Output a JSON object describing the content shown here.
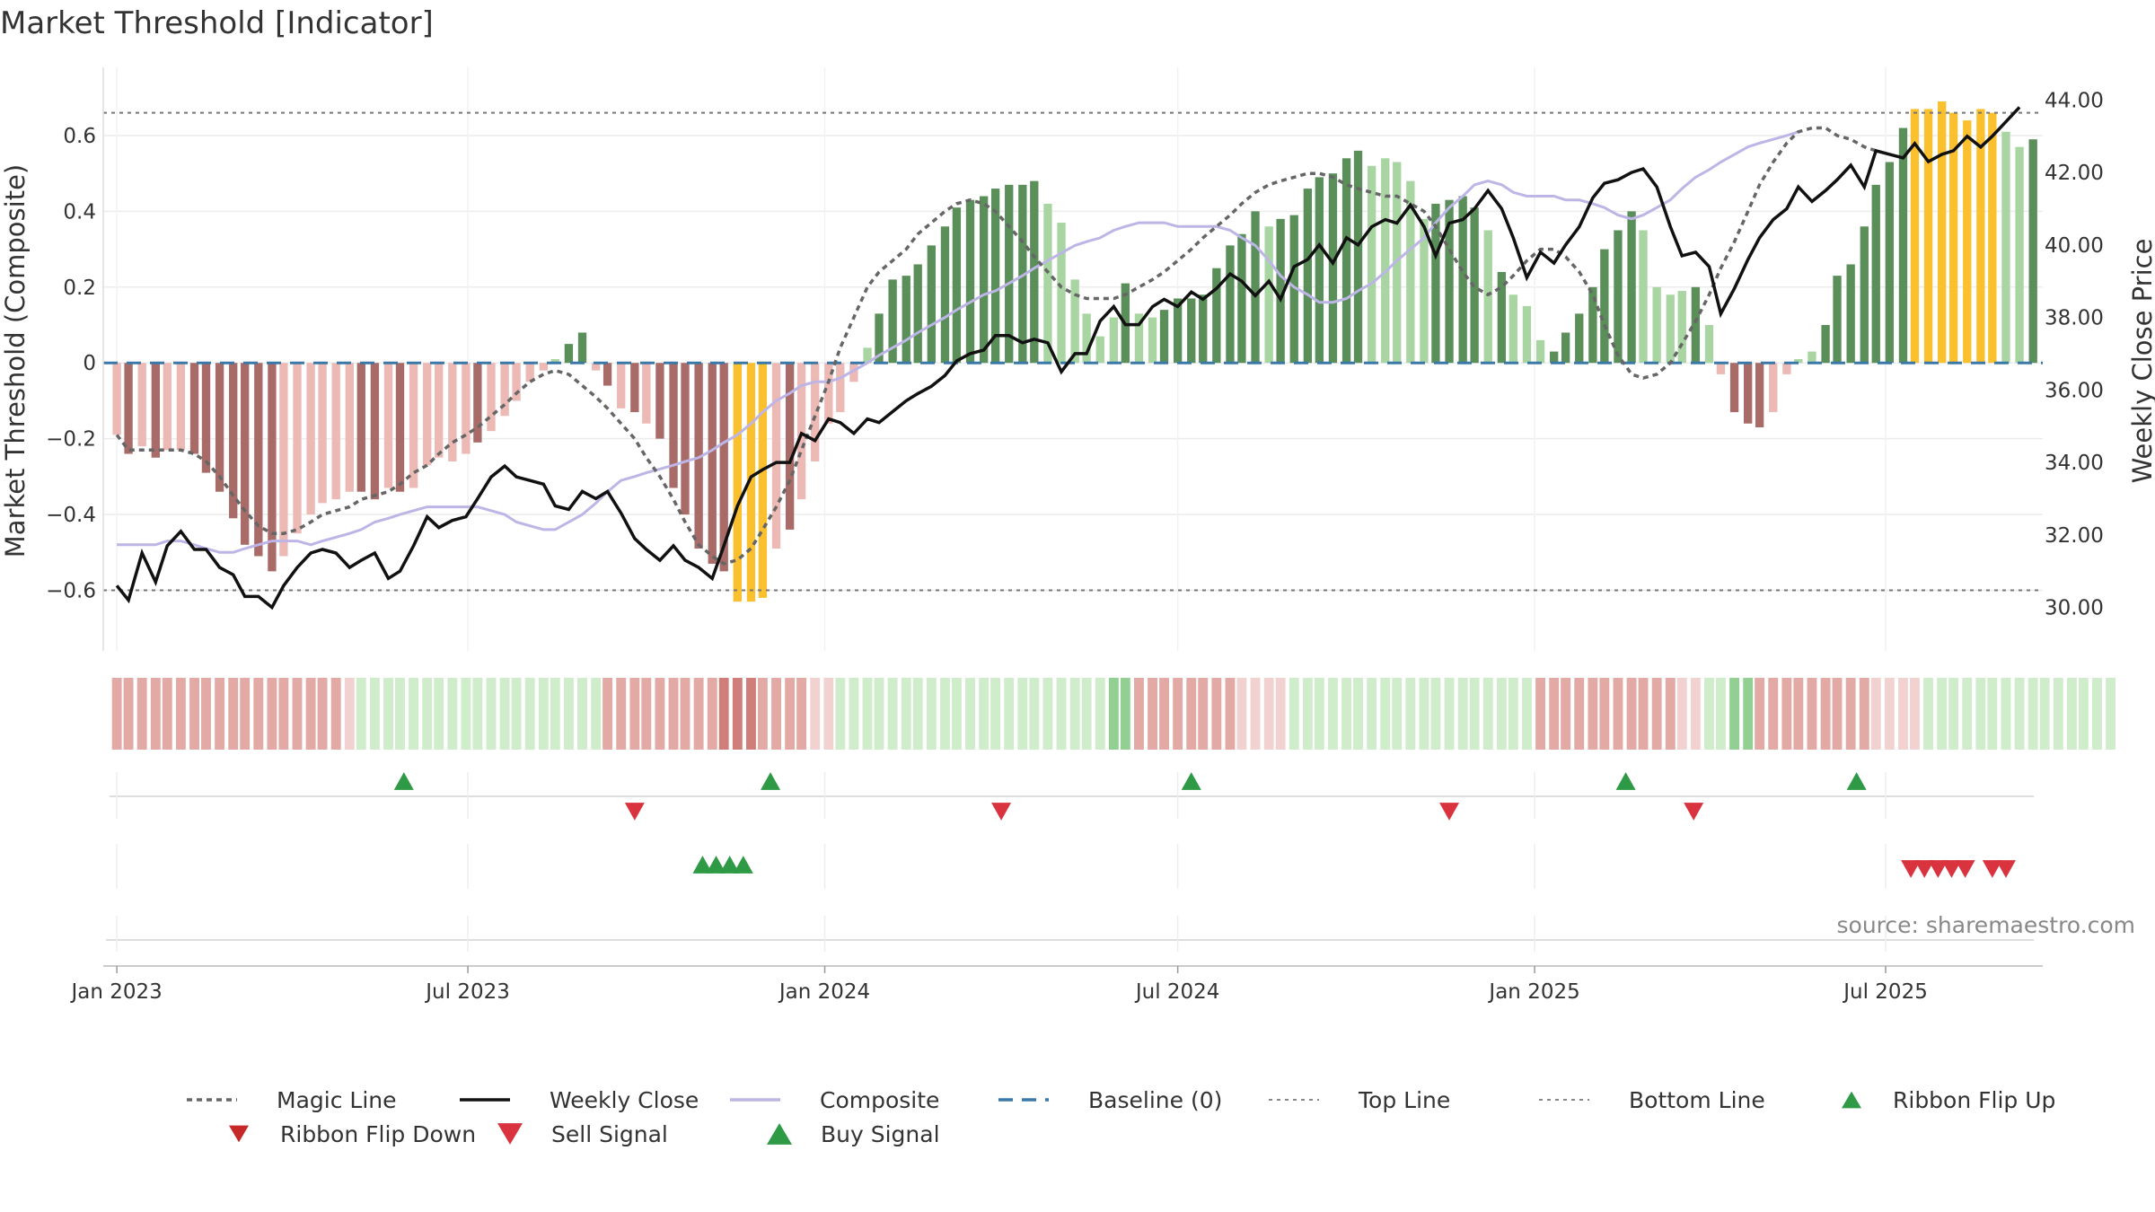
{
  "title": "Market Threshold [Indicator]",
  "source": "source: sharemaestro.com",
  "colors": {
    "dark_green": "#5a8f5a",
    "light_green": "#a8d5a2",
    "dark_red": "#a86b68",
    "light_red": "#ecb9b5",
    "gold": "#fbc02d",
    "magic": "#666666",
    "close": "#111111",
    "composite": "#bcb5e6",
    "baseline": "#3a78a8",
    "buy": "#2e9a45",
    "sell": "#d9333f"
  },
  "chart_data": {
    "type": "bar",
    "title": "Market Threshold [Indicator]",
    "ylabel": "Market Threshold (Composite)",
    "y2label": "Weekly Close Price",
    "x_start": "2023-01-01",
    "x_end": "2025-09-15",
    "ylim": [
      -0.76,
      0.78
    ],
    "y2lim": [
      28.8,
      44.9
    ],
    "yticks": [
      0.6,
      0.4,
      0.2,
      0,
      -0.2,
      -0.4,
      -0.6
    ],
    "ytick_labels": [
      "0.6",
      "0.4",
      "0.2",
      "0",
      "−0.2",
      "−0.4",
      "−0.6"
    ],
    "y2ticks": [
      44,
      42,
      40,
      38,
      36,
      34,
      32,
      30
    ],
    "y2tick_labels": [
      "44.00",
      "42.00",
      "40.00",
      "38.00",
      "36.00",
      "34.00",
      "32.00",
      "30.00"
    ],
    "xticks": [
      "2023-01-01",
      "2023-07-01",
      "2024-01-01",
      "2024-07-01",
      "2025-01-01",
      "2025-07-01"
    ],
    "xtick_labels": [
      "Jan 2023",
      "Jul 2023",
      "Jan 2024",
      "Jul 2024",
      "Jan 2025",
      "Jul 2025"
    ],
    "top_line": 0.66,
    "bottom_line": -0.6,
    "grid": true,
    "legend_position": "bottom",
    "legend": [
      "Magic Line",
      "Weekly Close",
      "Composite",
      "Baseline (0)",
      "Top Line",
      "Bottom Line",
      "Ribbon Flip Up",
      "Ribbon Flip Down",
      "Sell Signal",
      "Buy Signal"
    ],
    "composite_bars": [
      -0.19,
      -0.24,
      -0.22,
      -0.25,
      -0.23,
      -0.23,
      -0.24,
      -0.29,
      -0.34,
      -0.41,
      -0.48,
      -0.51,
      -0.55,
      -0.51,
      -0.45,
      -0.4,
      -0.37,
      -0.36,
      -0.34,
      -0.34,
      -0.36,
      -0.33,
      -0.34,
      -0.33,
      -0.27,
      -0.25,
      -0.26,
      -0.24,
      -0.21,
      -0.18,
      -0.14,
      -0.1,
      -0.05,
      -0.02,
      0.01,
      0.05,
      0.08,
      -0.02,
      -0.06,
      -0.12,
      -0.13,
      -0.16,
      -0.2,
      -0.33,
      -0.4,
      -0.49,
      -0.53,
      -0.55,
      -0.63,
      -0.63,
      -0.62,
      -0.49,
      -0.44,
      -0.36,
      -0.26,
      -0.16,
      -0.13,
      -0.05,
      0.04,
      0.13,
      0.22,
      0.23,
      0.26,
      0.31,
      0.36,
      0.41,
      0.43,
      0.44,
      0.46,
      0.47,
      0.47,
      0.48,
      0.42,
      0.37,
      0.22,
      0.13,
      0.07,
      0.12,
      0.21,
      0.13,
      0.12,
      0.14,
      0.17,
      0.17,
      0.18,
      0.25,
      0.31,
      0.34,
      0.4,
      0.36,
      0.38,
      0.39,
      0.46,
      0.49,
      0.5,
      0.54,
      0.56,
      0.52,
      0.54,
      0.53,
      0.48,
      0.38,
      0.42,
      0.43,
      0.44,
      0.41,
      0.35,
      0.24,
      0.18,
      0.15,
      0.06,
      0.03,
      0.08,
      0.13,
      0.2,
      0.3,
      0.35,
      0.4,
      0.35,
      0.2,
      0.18,
      0.19,
      0.2,
      0.1,
      -0.03,
      -0.13,
      -0.16,
      -0.17,
      -0.13,
      -0.03,
      0.01,
      0.03,
      0.1,
      0.23,
      0.26,
      0.36,
      0.47,
      0.53,
      0.62,
      0.67,
      0.67,
      0.69,
      0.66,
      0.64,
      0.67,
      0.66,
      0.61,
      0.57,
      0.59
    ],
    "bar_colors": [
      "lr",
      "dr",
      "lr",
      "dr",
      "lr",
      "lr",
      "dr",
      "dr",
      "dr",
      "dr",
      "dr",
      "dr",
      "dr",
      "lr",
      "lr",
      "lr",
      "lr",
      "lr",
      "lr",
      "dr",
      "dr",
      "lr",
      "dr",
      "lr",
      "lr",
      "lr",
      "lr",
      "lr",
      "dr",
      "lr",
      "lr",
      "lr",
      "lr",
      "lr",
      "lg",
      "dg",
      "dg",
      "lr",
      "dr",
      "lr",
      "dr",
      "lr",
      "dr",
      "dr",
      "dr",
      "dr",
      "dr",
      "dr",
      "g",
      "g",
      "g",
      "lr",
      "dr",
      "lr",
      "lr",
      "lr",
      "lr",
      "lr",
      "lg",
      "dg",
      "dg",
      "dg",
      "dg",
      "dg",
      "dg",
      "dg",
      "dg",
      "dg",
      "dg",
      "dg",
      "dg",
      "dg",
      "lg",
      "lg",
      "lg",
      "lg",
      "lg",
      "lg",
      "dg",
      "lg",
      "lg",
      "dg",
      "dg",
      "dg",
      "dg",
      "dg",
      "dg",
      "dg",
      "dg",
      "lg",
      "dg",
      "dg",
      "dg",
      "dg",
      "dg",
      "dg",
      "dg",
      "lg",
      "lg",
      "lg",
      "lg",
      "lg",
      "dg",
      "dg",
      "dg",
      "dg",
      "lg",
      "dg",
      "lg",
      "lg",
      "lg",
      "dg",
      "dg",
      "dg",
      "dg",
      "dg",
      "dg",
      "dg",
      "lg",
      "lg",
      "lg",
      "lg",
      "dg",
      "lg",
      "lr",
      "dr",
      "dr",
      "dr",
      "lr",
      "lr",
      "lg",
      "lg",
      "dg",
      "dg",
      "dg",
      "dg",
      "dg",
      "dg",
      "dg",
      "g",
      "g",
      "g",
      "g",
      "g",
      "g",
      "g",
      "lg",
      "lg",
      "dg"
    ],
    "ribbon": [
      2,
      2,
      2,
      2,
      2,
      2,
      2,
      2,
      2,
      2,
      2,
      2,
      2,
      2,
      2,
      2,
      2,
      2,
      1,
      1,
      1,
      1,
      1,
      1,
      1,
      1,
      1,
      1,
      1,
      1,
      1,
      1,
      1,
      1,
      1,
      1,
      1,
      1,
      2,
      2,
      2,
      2,
      2,
      2,
      2,
      2,
      2,
      3,
      3,
      3,
      2,
      2,
      2,
      2,
      1,
      1,
      1,
      1,
      1,
      1,
      1,
      1,
      1,
      1,
      1,
      1,
      1,
      1,
      1,
      1,
      1,
      1,
      1,
      1,
      1,
      1,
      1,
      2,
      2,
      2,
      2,
      2,
      2,
      2,
      2,
      2,
      2,
      1,
      1,
      1,
      1,
      1,
      1,
      1,
      1,
      1,
      1,
      1,
      1,
      1,
      1,
      1,
      1,
      1,
      1,
      1,
      1,
      1,
      1,
      1,
      2,
      2,
      2,
      2,
      2,
      2,
      2,
      2,
      2,
      2,
      2,
      1,
      1,
      1,
      1,
      2,
      2,
      2,
      2,
      2,
      2,
      2,
      2,
      2,
      2,
      2,
      1,
      1,
      1,
      1,
      1,
      1,
      1,
      1,
      1,
      1,
      1,
      1,
      1,
      1,
      1,
      1,
      1,
      1,
      1
    ],
    "ribbon_side": [
      "r",
      "r",
      "r",
      "r",
      "r",
      "r",
      "r",
      "r",
      "r",
      "r",
      "r",
      "r",
      "r",
      "r",
      "r",
      "r",
      "r",
      "r",
      "r",
      "g",
      "g",
      "g",
      "g",
      "g",
      "g",
      "g",
      "g",
      "g",
      "g",
      "g",
      "g",
      "g",
      "g",
      "g",
      "g",
      "g",
      "g",
      "g",
      "r",
      "r",
      "r",
      "r",
      "r",
      "r",
      "r",
      "r",
      "r",
      "r",
      "r",
      "r",
      "r",
      "r",
      "r",
      "r",
      "r",
      "r",
      "g",
      "g",
      "g",
      "g",
      "g",
      "g",
      "g",
      "g",
      "g",
      "g",
      "g",
      "g",
      "g",
      "g",
      "g",
      "g",
      "g",
      "g",
      "g",
      "g",
      "g",
      "g",
      "g",
      "r",
      "r",
      "r",
      "r",
      "r",
      "r",
      "r",
      "r",
      "r",
      "r",
      "r",
      "r",
      "g",
      "g",
      "g",
      "g",
      "g",
      "g",
      "g",
      "g",
      "g",
      "g",
      "g",
      "g",
      "g",
      "g",
      "g",
      "g",
      "g",
      "g",
      "g",
      "r",
      "r",
      "r",
      "r",
      "r",
      "r",
      "r",
      "r",
      "r",
      "r",
      "r",
      "r",
      "r",
      "g",
      "g",
      "g",
      "g",
      "r",
      "r",
      "r",
      "r",
      "r",
      "r",
      "r",
      "r",
      "r",
      "r",
      "r",
      "r",
      "r",
      "g",
      "g",
      "g",
      "g",
      "g",
      "g",
      "g",
      "g",
      "g",
      "g",
      "g",
      "g",
      "g",
      "g",
      "g",
      "g"
    ],
    "magic_line": [
      -0.19,
      -0.23,
      -0.23,
      -0.23,
      -0.23,
      -0.23,
      -0.24,
      -0.26,
      -0.3,
      -0.35,
      -0.39,
      -0.43,
      -0.45,
      -0.45,
      -0.44,
      -0.42,
      -0.4,
      -0.39,
      -0.38,
      -0.36,
      -0.35,
      -0.34,
      -0.32,
      -0.29,
      -0.27,
      -0.24,
      -0.21,
      -0.19,
      -0.17,
      -0.14,
      -0.11,
      -0.08,
      -0.05,
      -0.03,
      -0.02,
      -0.03,
      -0.06,
      -0.09,
      -0.12,
      -0.16,
      -0.2,
      -0.25,
      -0.3,
      -0.36,
      -0.42,
      -0.48,
      -0.51,
      -0.53,
      -0.52,
      -0.49,
      -0.44,
      -0.38,
      -0.31,
      -0.23,
      -0.14,
      -0.05,
      0.04,
      0.12,
      0.2,
      0.24,
      0.27,
      0.3,
      0.34,
      0.37,
      0.4,
      0.42,
      0.43,
      0.42,
      0.4,
      0.36,
      0.32,
      0.28,
      0.24,
      0.2,
      0.18,
      0.17,
      0.17,
      0.17,
      0.18,
      0.2,
      0.22,
      0.24,
      0.27,
      0.3,
      0.33,
      0.36,
      0.39,
      0.42,
      0.45,
      0.47,
      0.48,
      0.49,
      0.5,
      0.5,
      0.49,
      0.47,
      0.46,
      0.45,
      0.44,
      0.44,
      0.42,
      0.4,
      0.36,
      0.3,
      0.24,
      0.2,
      0.18,
      0.2,
      0.23,
      0.27,
      0.3,
      0.3,
      0.28,
      0.24,
      0.18,
      0.1,
      0.02,
      -0.03,
      -0.04,
      -0.03,
      0.0,
      0.05,
      0.11,
      0.18,
      0.25,
      0.32,
      0.4,
      0.47,
      0.53,
      0.58,
      0.61,
      0.62,
      0.62,
      0.6,
      0.59,
      0.57,
      0.56
    ],
    "composite_line": [
      -0.48,
      -0.48,
      -0.48,
      -0.48,
      -0.47,
      -0.47,
      -0.48,
      -0.49,
      -0.5,
      -0.5,
      -0.49,
      -0.48,
      -0.47,
      -0.47,
      -0.47,
      -0.48,
      -0.47,
      -0.46,
      -0.45,
      -0.44,
      -0.42,
      -0.41,
      -0.4,
      -0.39,
      -0.38,
      -0.38,
      -0.38,
      -0.38,
      -0.38,
      -0.39,
      -0.4,
      -0.42,
      -0.43,
      -0.44,
      -0.44,
      -0.42,
      -0.4,
      -0.37,
      -0.34,
      -0.31,
      -0.3,
      -0.29,
      -0.28,
      -0.27,
      -0.26,
      -0.25,
      -0.23,
      -0.21,
      -0.19,
      -0.16,
      -0.13,
      -0.1,
      -0.08,
      -0.06,
      -0.05,
      -0.05,
      -0.04,
      -0.02,
      0.0,
      0.02,
      0.04,
      0.06,
      0.08,
      0.1,
      0.12,
      0.14,
      0.16,
      0.18,
      0.19,
      0.21,
      0.23,
      0.25,
      0.27,
      0.29,
      0.31,
      0.32,
      0.33,
      0.35,
      0.36,
      0.37,
      0.37,
      0.37,
      0.36,
      0.36,
      0.36,
      0.36,
      0.35,
      0.33,
      0.31,
      0.27,
      0.23,
      0.2,
      0.18,
      0.16,
      0.16,
      0.17,
      0.19,
      0.21,
      0.24,
      0.27,
      0.3,
      0.33,
      0.37,
      0.41,
      0.44,
      0.47,
      0.48,
      0.47,
      0.45,
      0.44,
      0.44,
      0.44,
      0.43,
      0.43,
      0.42,
      0.41,
      0.39,
      0.38,
      0.39,
      0.41,
      0.43,
      0.46,
      0.49,
      0.51,
      0.53,
      0.55,
      0.57,
      0.58,
      0.59,
      0.6,
      0.61
    ],
    "weekly_close": [
      30.6,
      30.2,
      31.5,
      30.7,
      31.7,
      32.1,
      31.6,
      31.6,
      31.1,
      30.9,
      30.3,
      30.3,
      30.0,
      30.6,
      31.1,
      31.5,
      31.6,
      31.5,
      31.1,
      31.3,
      31.5,
      30.8,
      31.0,
      31.7,
      32.5,
      32.2,
      32.4,
      32.5,
      33.0,
      33.6,
      33.9,
      33.6,
      33.5,
      33.4,
      32.8,
      32.7,
      33.2,
      33.0,
      33.2,
      32.6,
      31.9,
      31.6,
      31.3,
      31.7,
      31.3,
      31.1,
      30.8,
      31.7,
      32.8,
      33.6,
      33.8,
      34.0,
      34.0,
      34.8,
      34.6,
      35.2,
      35.1,
      34.8,
      35.2,
      35.1,
      35.4,
      35.7,
      35.9,
      36.1,
      36.4,
      36.8,
      37.0,
      37.1,
      37.5,
      37.5,
      37.3,
      37.4,
      37.3,
      36.5,
      37.0,
      37.0,
      37.9,
      38.3,
      37.8,
      37.8,
      38.3,
      38.5,
      38.3,
      38.7,
      38.5,
      38.8,
      39.2,
      39.0,
      38.6,
      39.0,
      38.5,
      39.4,
      39.6,
      40.0,
      39.5,
      40.2,
      40.0,
      40.5,
      40.7,
      40.6,
      41.1,
      40.5,
      39.7,
      40.6,
      40.7,
      41.0,
      41.5,
      41.0,
      40.2,
      39.1,
      39.8,
      39.5,
      40.0,
      40.5,
      41.3,
      41.7,
      41.8,
      42.0,
      42.1,
      41.6,
      40.5,
      39.7,
      39.8,
      39.4,
      38.1,
      38.8,
      39.6,
      40.2,
      40.7,
      41.0,
      41.6,
      41.2,
      41.5,
      41.8,
      42.2,
      41.6,
      42.6,
      42.5,
      42.4,
      42.8,
      42.3,
      42.5,
      42.6,
      43.0,
      42.7,
      43.0,
      43.4,
      43.8
    ],
    "ribbon_flip_up": [
      "2023-05-29",
      "2023-12-04",
      "2024-07-08",
      "2025-02-17",
      "2025-06-16"
    ],
    "ribbon_flip_down": [
      "2023-09-25",
      "2024-04-01",
      "2024-11-18",
      "2025-03-24"
    ],
    "buy_signal": [
      "2023-10-30",
      "2023-11-06",
      "2023-11-13",
      "2023-11-20"
    ],
    "sell_signal": [
      "2025-07-14",
      "2025-07-21",
      "2025-07-28",
      "2025-08-04",
      "2025-08-11",
      "2025-08-25",
      "2025-09-01"
    ]
  }
}
